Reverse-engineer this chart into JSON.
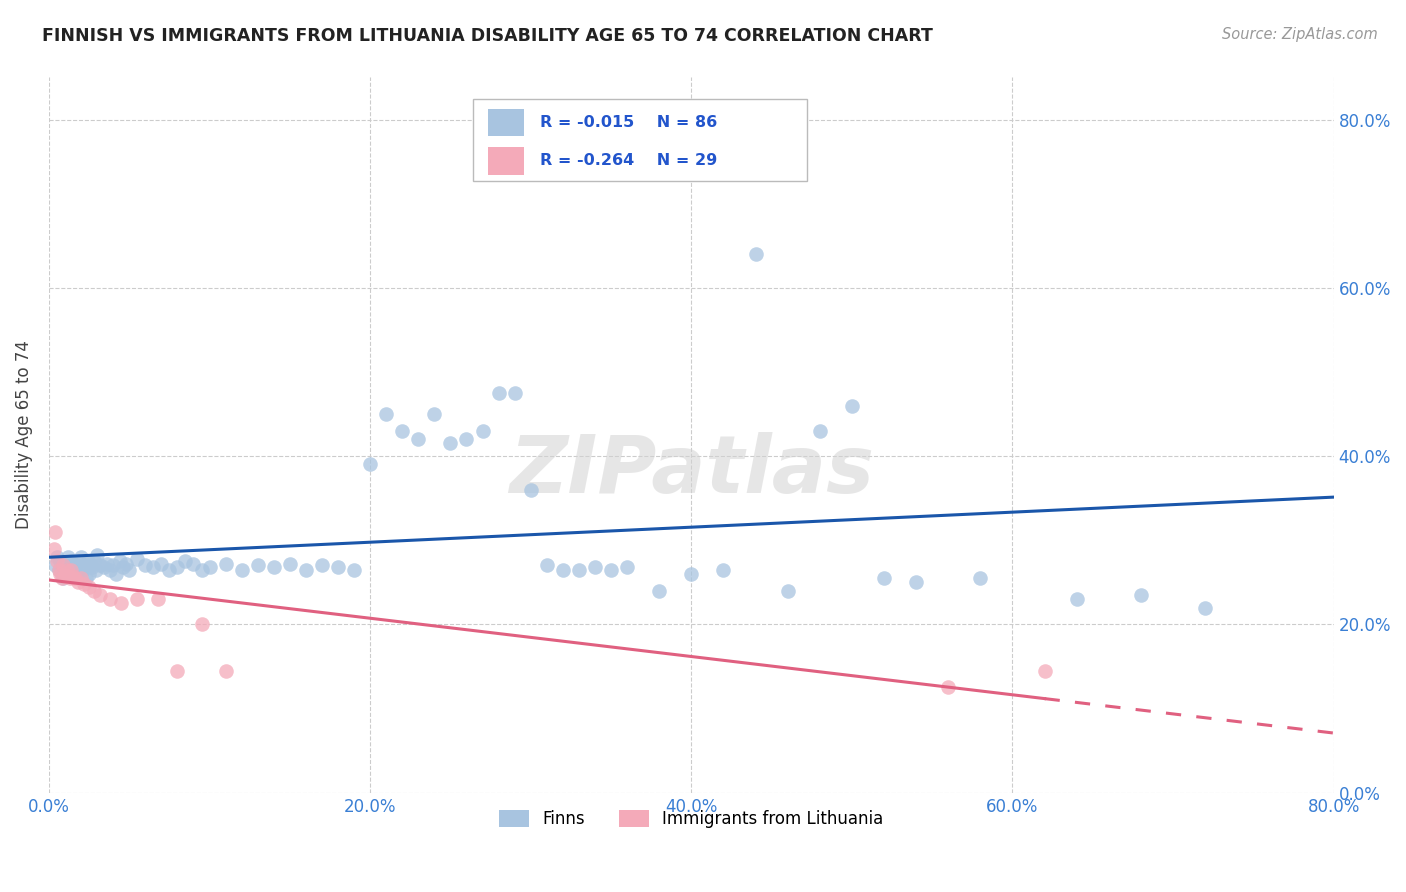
{
  "title": "FINNISH VS IMMIGRANTS FROM LITHUANIA DISABILITY AGE 65 TO 74 CORRELATION CHART",
  "source": "Source: ZipAtlas.com",
  "ylabel": "Disability Age 65 to 74",
  "xlim": [
    0.0,
    0.8
  ],
  "ylim": [
    0.0,
    0.85
  ],
  "yticks": [
    0.0,
    0.2,
    0.4,
    0.6,
    0.8
  ],
  "xticks": [
    0.0,
    0.2,
    0.4,
    0.6,
    0.8
  ],
  "finns_R": -0.015,
  "finns_N": 86,
  "lithuanians_R": -0.264,
  "lithuanians_N": 29,
  "finns_color": "#a8c4e0",
  "finns_line_color": "#1a56aa",
  "lithuanians_color": "#f4aab9",
  "lithuanians_line_color": "#e06080",
  "finns_x": [
    0.004,
    0.005,
    0.006,
    0.007,
    0.008,
    0.009,
    0.01,
    0.011,
    0.012,
    0.013,
    0.014,
    0.015,
    0.016,
    0.017,
    0.018,
    0.019,
    0.02,
    0.021,
    0.022,
    0.023,
    0.024,
    0.025,
    0.026,
    0.027,
    0.028,
    0.029,
    0.03,
    0.032,
    0.034,
    0.036,
    0.038,
    0.04,
    0.042,
    0.044,
    0.046,
    0.048,
    0.05,
    0.055,
    0.06,
    0.065,
    0.07,
    0.075,
    0.08,
    0.085,
    0.09,
    0.095,
    0.1,
    0.11,
    0.12,
    0.13,
    0.14,
    0.15,
    0.16,
    0.17,
    0.18,
    0.19,
    0.2,
    0.21,
    0.22,
    0.23,
    0.24,
    0.25,
    0.26,
    0.27,
    0.28,
    0.29,
    0.3,
    0.31,
    0.32,
    0.33,
    0.34,
    0.35,
    0.36,
    0.38,
    0.4,
    0.42,
    0.44,
    0.46,
    0.48,
    0.5,
    0.52,
    0.54,
    0.58,
    0.64,
    0.68,
    0.72
  ],
  "finns_y": [
    0.27,
    0.28,
    0.265,
    0.275,
    0.26,
    0.255,
    0.27,
    0.265,
    0.28,
    0.26,
    0.275,
    0.27,
    0.26,
    0.27,
    0.265,
    0.275,
    0.28,
    0.265,
    0.27,
    0.255,
    0.275,
    0.26,
    0.27,
    0.268,
    0.275,
    0.265,
    0.282,
    0.27,
    0.268,
    0.272,
    0.265,
    0.27,
    0.26,
    0.275,
    0.268,
    0.272,
    0.265,
    0.278,
    0.27,
    0.268,
    0.272,
    0.265,
    0.268,
    0.275,
    0.272,
    0.265,
    0.268,
    0.272,
    0.265,
    0.27,
    0.268,
    0.272,
    0.265,
    0.27,
    0.268,
    0.265,
    0.39,
    0.45,
    0.43,
    0.42,
    0.45,
    0.415,
    0.42,
    0.43,
    0.475,
    0.475,
    0.36,
    0.27,
    0.265,
    0.265,
    0.268,
    0.265,
    0.268,
    0.24,
    0.26,
    0.265,
    0.64,
    0.24,
    0.43,
    0.46,
    0.255,
    0.25,
    0.255,
    0.23,
    0.235,
    0.22
  ],
  "lithuanians_x": [
    0.003,
    0.004,
    0.005,
    0.006,
    0.007,
    0.008,
    0.009,
    0.01,
    0.011,
    0.012,
    0.013,
    0.014,
    0.015,
    0.016,
    0.018,
    0.02,
    0.022,
    0.025,
    0.028,
    0.032,
    0.038,
    0.045,
    0.055,
    0.068,
    0.08,
    0.095,
    0.11,
    0.56,
    0.62
  ],
  "lithuanians_y": [
    0.29,
    0.31,
    0.275,
    0.265,
    0.26,
    0.255,
    0.27,
    0.258,
    0.265,
    0.258,
    0.255,
    0.265,
    0.258,
    0.255,
    0.25,
    0.255,
    0.248,
    0.245,
    0.24,
    0.235,
    0.23,
    0.225,
    0.23,
    0.23,
    0.145,
    0.2,
    0.145,
    0.125,
    0.145
  ],
  "watermark": "ZIPatlas",
  "background_color": "#ffffff",
  "grid_color": "#cccccc"
}
